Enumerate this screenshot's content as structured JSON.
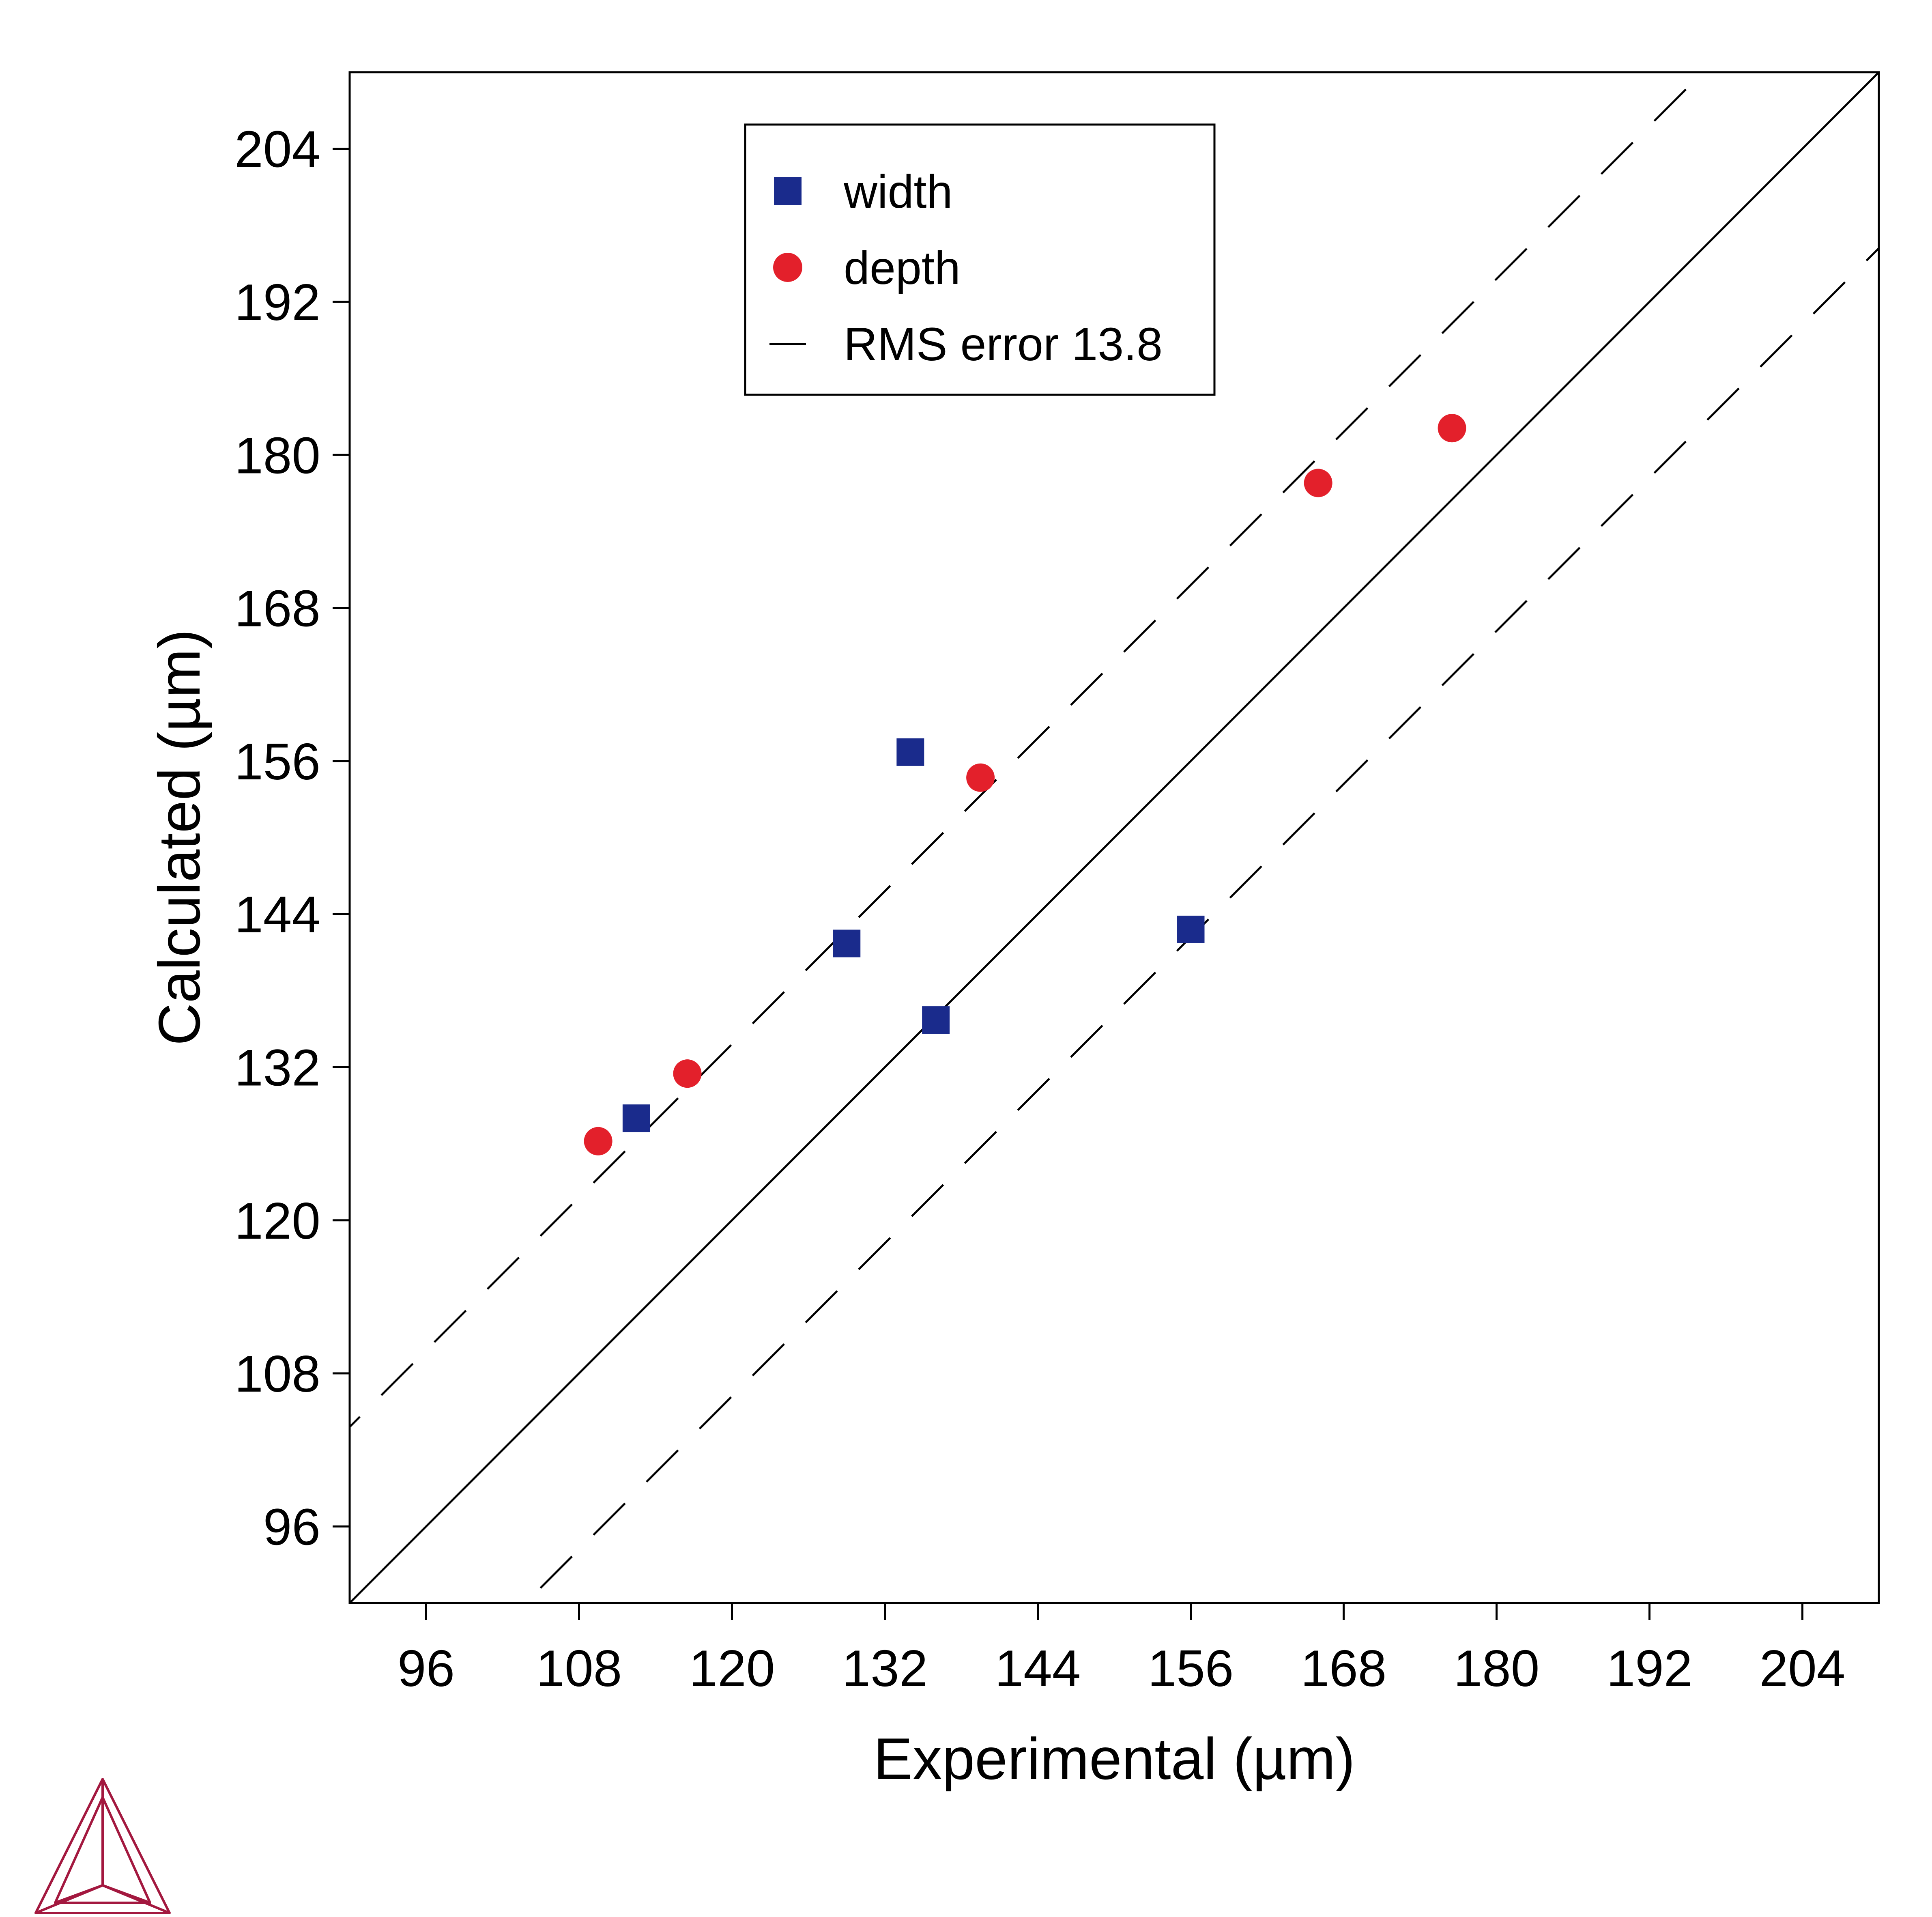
{
  "chart_data": {
    "type": "scatter",
    "xlabel": "Experimental (µm)",
    "ylabel": "Calculated (µm)",
    "xlim": [
      90,
      210
    ],
    "ylim": [
      90,
      210
    ],
    "xticks": [
      96,
      108,
      120,
      132,
      144,
      156,
      168,
      180,
      192,
      204
    ],
    "yticks": [
      96,
      108,
      120,
      132,
      144,
      156,
      168,
      180,
      192,
      204
    ],
    "legend_position": "top-center",
    "grid": false,
    "series": [
      {
        "name": "width",
        "marker": "square",
        "color": "#1a2b8c",
        "points": [
          [
            112.5,
            128.0
          ],
          [
            129.0,
            141.7
          ],
          [
            134.0,
            156.7
          ],
          [
            136.0,
            135.7
          ],
          [
            156.0,
            142.8
          ]
        ]
      },
      {
        "name": "depth",
        "marker": "circle",
        "color": "#e3202b",
        "points": [
          [
            109.5,
            126.2
          ],
          [
            116.5,
            131.5
          ],
          [
            139.5,
            154.7
          ],
          [
            166.0,
            177.8
          ],
          [
            176.5,
            182.1
          ]
        ]
      }
    ],
    "reference_lines": [
      {
        "label": "",
        "style": "solid",
        "color": "#000000",
        "offset": 0
      },
      {
        "label": "RMS error 13.8",
        "style": "dashed",
        "color": "#000000",
        "offset": 13.8
      },
      {
        "label": "",
        "style": "dashed",
        "color": "#000000",
        "offset": -13.8
      }
    ]
  },
  "logo": {
    "color": "#a3183f",
    "icon": "thermo-calc-triangle-logo"
  }
}
